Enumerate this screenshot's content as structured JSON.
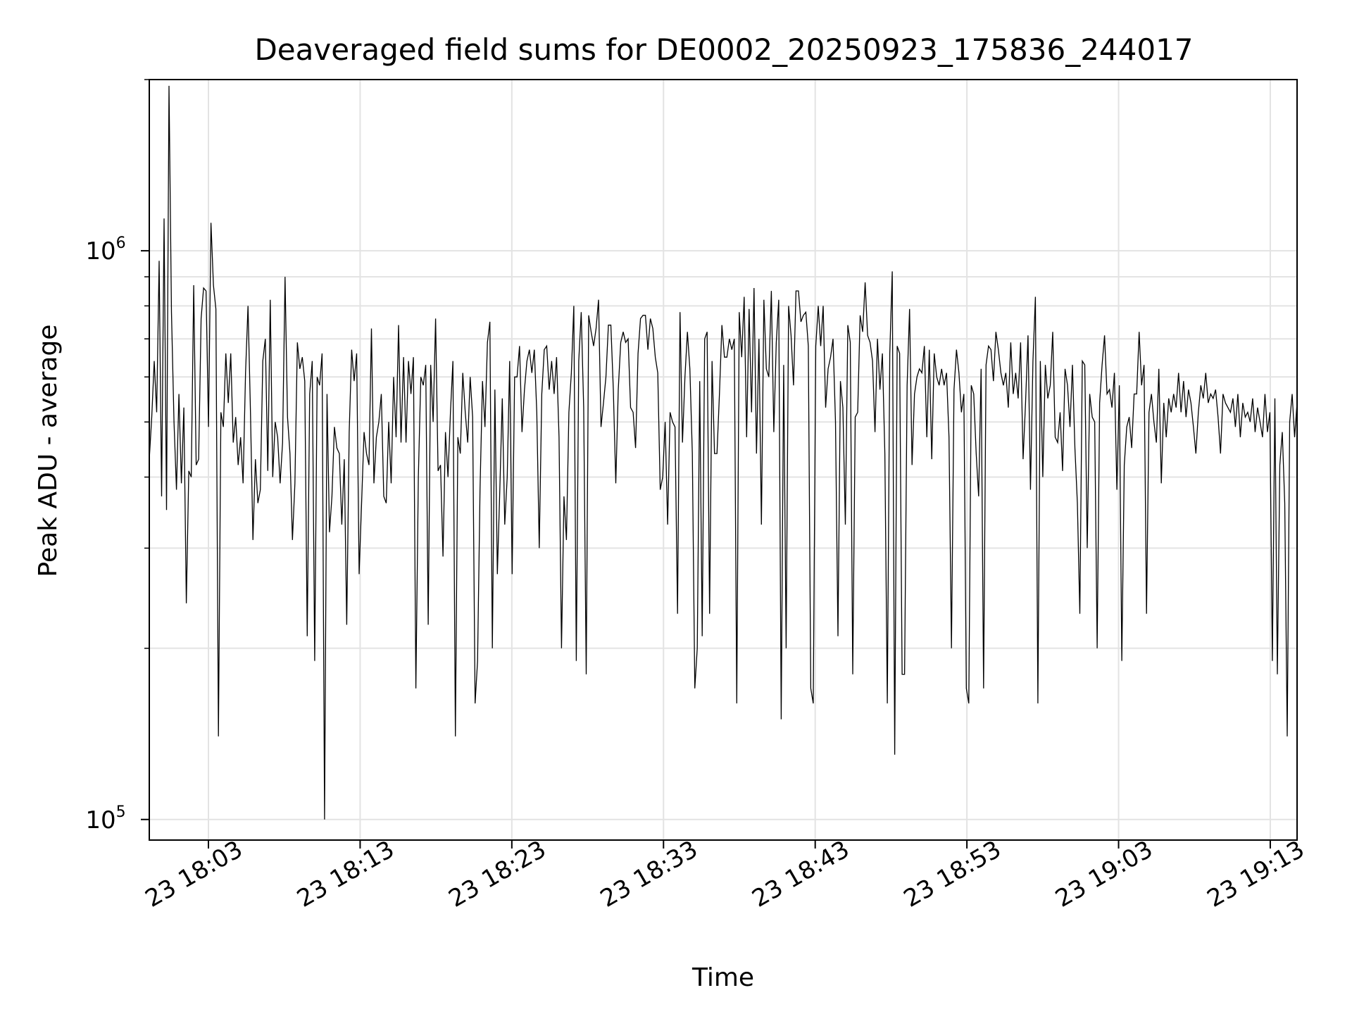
{
  "chart_data": {
    "type": "line",
    "title": "Deaveraged field sums for DE0002_20250923_175836_244017",
    "xlabel": "Time",
    "ylabel": "Peak ADU - average",
    "x_axis": {
      "type": "time",
      "start": "2025-09-23T17:59:06",
      "end": "2025-09-23T19:14:46",
      "ticks": [
        {
          "time": "2025-09-23T18:03:00",
          "label": "23 18:03"
        },
        {
          "time": "2025-09-23T18:13:00",
          "label": "23 18:13"
        },
        {
          "time": "2025-09-23T18:23:00",
          "label": "23 18:23"
        },
        {
          "time": "2025-09-23T18:33:00",
          "label": "23 18:33"
        },
        {
          "time": "2025-09-23T18:43:00",
          "label": "23 18:43"
        },
        {
          "time": "2025-09-23T18:53:00",
          "label": "23 18:53"
        },
        {
          "time": "2025-09-23T19:03:00",
          "label": "23 19:03"
        },
        {
          "time": "2025-09-23T19:13:00",
          "label": "23 19:13"
        }
      ]
    },
    "y_axis": {
      "scale": "log",
      "ylim": [
        92000,
        2000000
      ],
      "ticks": [
        {
          "value": 100000,
          "base": "10",
          "exp": "5"
        },
        {
          "value": 1000000,
          "base": "10",
          "exp": "6"
        }
      ]
    },
    "grid": true,
    "line_color": "#000000",
    "series": [
      {
        "start": "2025-09-23T17:59:06",
        "end": "2025-09-23T19:14:46",
        "values": [
          430000,
          510000,
          640000,
          520000,
          960000,
          370000,
          1140000,
          350000,
          1950000,
          780000,
          500000,
          380000,
          560000,
          390000,
          530000,
          240000,
          410000,
          400000,
          870000,
          420000,
          430000,
          760000,
          860000,
          850000,
          490000,
          1120000,
          870000,
          790000,
          140000,
          520000,
          490000,
          660000,
          540000,
          660000,
          460000,
          510000,
          420000,
          470000,
          390000,
          610000,
          800000,
          520000,
          310000,
          430000,
          360000,
          380000,
          640000,
          700000,
          410000,
          820000,
          400000,
          500000,
          470000,
          390000,
          460000,
          900000,
          510000,
          440000,
          310000,
          390000,
          690000,
          620000,
          650000,
          590000,
          210000,
          560000,
          640000,
          190000,
          600000,
          580000,
          660000,
          100000,
          560000,
          320000,
          370000,
          490000,
          450000,
          440000,
          330000,
          430000,
          220000,
          480000,
          670000,
          590000,
          660000,
          270000,
          360000,
          480000,
          440000,
          420000,
          730000,
          390000,
          470000,
          500000,
          560000,
          370000,
          360000,
          500000,
          390000,
          600000,
          470000,
          740000,
          460000,
          650000,
          460000,
          640000,
          560000,
          650000,
          170000,
          400000,
          600000,
          580000,
          630000,
          220000,
          630000,
          500000,
          760000,
          410000,
          420000,
          290000,
          480000,
          400000,
          520000,
          640000,
          140000,
          470000,
          440000,
          610000,
          520000,
          460000,
          600000,
          510000,
          160000,
          190000,
          380000,
          590000,
          490000,
          690000,
          750000,
          200000,
          570000,
          270000,
          380000,
          550000,
          330000,
          400000,
          640000,
          270000,
          600000,
          600000,
          680000,
          480000,
          570000,
          640000,
          670000,
          610000,
          670000,
          520000,
          300000,
          560000,
          670000,
          680000,
          570000,
          640000,
          560000,
          650000,
          470000,
          200000,
          370000,
          310000,
          520000,
          610000,
          800000,
          190000,
          640000,
          780000,
          530000,
          180000,
          770000,
          720000,
          680000,
          730000,
          820000,
          490000,
          540000,
          600000,
          740000,
          740000,
          570000,
          390000,
          570000,
          690000,
          720000,
          690000,
          700000,
          530000,
          520000,
          450000,
          660000,
          760000,
          770000,
          770000,
          670000,
          760000,
          730000,
          650000,
          610000,
          380000,
          400000,
          500000,
          330000,
          520000,
          500000,
          490000,
          230000,
          780000,
          460000,
          600000,
          720000,
          620000,
          440000,
          170000,
          200000,
          590000,
          210000,
          700000,
          720000,
          230000,
          640000,
          440000,
          440000,
          560000,
          740000,
          650000,
          650000,
          700000,
          670000,
          700000,
          160000,
          780000,
          650000,
          830000,
          470000,
          790000,
          520000,
          860000,
          440000,
          700000,
          330000,
          820000,
          620000,
          600000,
          850000,
          480000,
          690000,
          820000,
          150000,
          630000,
          200000,
          800000,
          710000,
          580000,
          850000,
          850000,
          750000,
          770000,
          780000,
          680000,
          170000,
          160000,
          680000,
          800000,
          680000,
          800000,
          530000,
          620000,
          650000,
          700000,
          500000,
          210000,
          590000,
          530000,
          330000,
          740000,
          690000,
          180000,
          510000,
          520000,
          770000,
          720000,
          880000,
          710000,
          690000,
          640000,
          480000,
          700000,
          570000,
          660000,
          440000,
          160000,
          660000,
          920000,
          130000,
          680000,
          660000,
          180000,
          180000,
          580000,
          790000,
          420000,
          560000,
          600000,
          620000,
          610000,
          680000,
          470000,
          670000,
          430000,
          660000,
          600000,
          580000,
          620000,
          580000,
          610000,
          470000,
          200000,
          570000,
          670000,
          610000,
          520000,
          560000,
          170000,
          160000,
          580000,
          560000,
          440000,
          370000,
          620000,
          170000,
          630000,
          680000,
          670000,
          590000,
          720000,
          670000,
          610000,
          580000,
          610000,
          530000,
          690000,
          560000,
          610000,
          550000,
          690000,
          430000,
          540000,
          710000,
          380000,
          640000,
          830000,
          160000,
          640000,
          400000,
          630000,
          550000,
          580000,
          720000,
          470000,
          460000,
          520000,
          410000,
          620000,
          580000,
          490000,
          630000,
          450000,
          360000,
          230000,
          640000,
          630000,
          300000,
          560000,
          510000,
          500000,
          200000,
          540000,
          630000,
          710000,
          560000,
          570000,
          530000,
          610000,
          380000,
          580000,
          190000,
          420000,
          490000,
          510000,
          450000,
          560000,
          560000,
          720000,
          580000,
          630000,
          230000,
          520000,
          560000,
          500000,
          460000,
          620000,
          390000,
          540000,
          470000,
          550000,
          520000,
          560000,
          530000,
          610000,
          520000,
          590000,
          510000,
          570000,
          540000,
          490000,
          440000,
          520000,
          580000,
          550000,
          610000,
          540000,
          560000,
          550000,
          570000,
          510000,
          440000,
          560000,
          540000,
          530000,
          520000,
          550000,
          490000,
          560000,
          470000,
          540000,
          510000,
          520000,
          500000,
          550000,
          480000,
          530000,
          500000,
          470000,
          560000,
          480000,
          520000,
          190000,
          550000,
          180000,
          420000,
          480000,
          360000,
          140000,
          500000,
          560000,
          470000,
          540000
        ]
      }
    ]
  }
}
